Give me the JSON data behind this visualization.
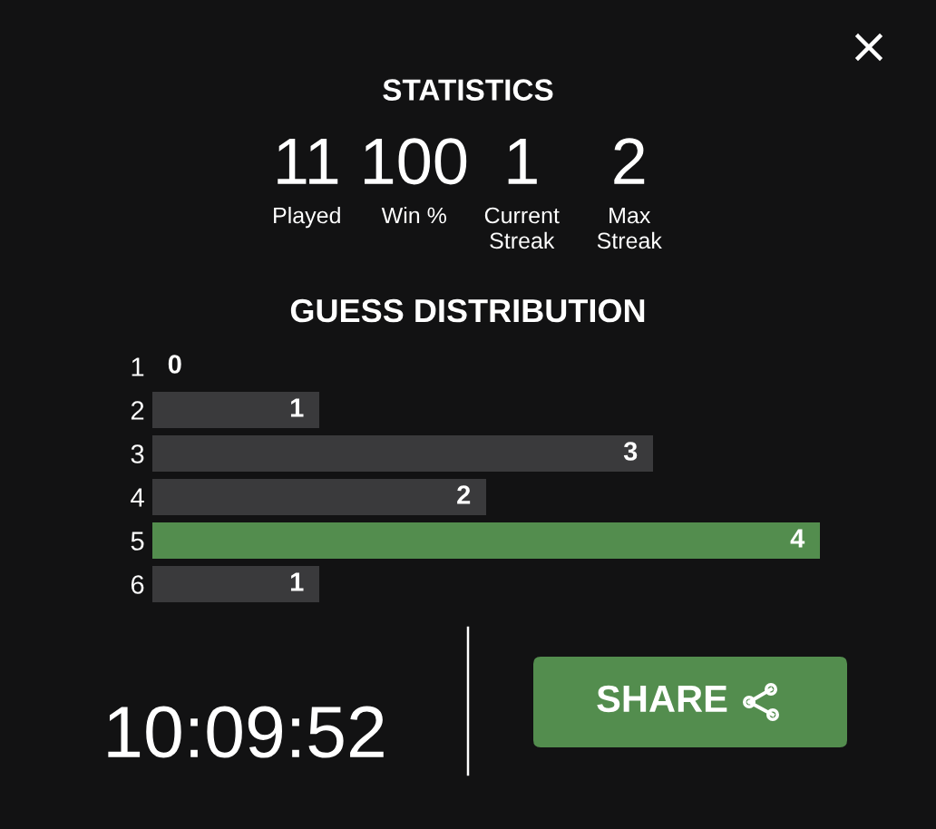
{
  "chart_data": [
    {
      "type": "other",
      "title": "STATISTICS",
      "categories": [
        "Played",
        "Win %",
        "Current\nStreak",
        "Max\nStreak"
      ],
      "values": [
        11,
        100,
        1,
        2
      ],
      "data_labels": true
    },
    {
      "type": "bar",
      "orientation": "horizontal",
      "title": "GUESS DISTRIBUTION",
      "categories": [
        "1",
        "2",
        "3",
        "4",
        "5",
        "6"
      ],
      "values": [
        0,
        1,
        3,
        2,
        4,
        1
      ],
      "colors": [
        "#3a3a3c",
        "#3a3a3c",
        "#3a3a3c",
        "#3a3a3c",
        "#538d4e",
        "#3a3a3c"
      ],
      "data_labels": true,
      "tick_labels": "y"
    },
    {
      "type": "other",
      "annotations": [
        "10:09:52",
        "SHARE"
      ]
    }
  ]
}
